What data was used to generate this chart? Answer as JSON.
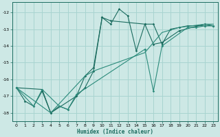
{
  "xlabel": "Humidex (Indice chaleur)",
  "ylabel": "",
  "xlim": [
    -0.5,
    23.5
  ],
  "ylim": [
    -18.5,
    -11.4
  ],
  "bg_color": "#cde8e5",
  "grid_color": "#a8d4d0",
  "line_color": "#1a6b5e",
  "line_color2": "#2a8a7a",
  "xticks": [
    0,
    1,
    2,
    3,
    4,
    5,
    6,
    7,
    8,
    9,
    10,
    11,
    12,
    13,
    14,
    15,
    16,
    17,
    18,
    19,
    20,
    21,
    22,
    23
  ],
  "yticks": [
    -18,
    -17,
    -16,
    -15,
    -14,
    -13,
    -12
  ],
  "series1_x": [
    0,
    1,
    2,
    3,
    4,
    5,
    6,
    7,
    8,
    9,
    10,
    11,
    12,
    13,
    14,
    15,
    16,
    17,
    18,
    19,
    20,
    21,
    22,
    23
  ],
  "series1_y": [
    -16.5,
    -17.3,
    -17.6,
    -16.7,
    -18.0,
    -17.6,
    -17.8,
    -17.0,
    -16.5,
    -15.5,
    -12.3,
    -12.7,
    -11.8,
    -12.2,
    -14.3,
    -12.7,
    -12.7,
    -13.9,
    -13.0,
    -12.9,
    -12.8,
    -12.8,
    -12.8,
    -12.8
  ],
  "series2_x": [
    0,
    3,
    4,
    7,
    8,
    9,
    10,
    11,
    15,
    16,
    17,
    19,
    22,
    23
  ],
  "series2_y": [
    -16.5,
    -16.6,
    -18.0,
    -17.0,
    -15.8,
    -15.3,
    -12.3,
    -12.5,
    -12.7,
    -13.9,
    -13.8,
    -13.1,
    -12.7,
    -12.8
  ],
  "series3_x": [
    0,
    2,
    3,
    5,
    6,
    7,
    15,
    16,
    17,
    20,
    21,
    22,
    23
  ],
  "series3_y": [
    -16.5,
    -17.6,
    -16.6,
    -17.6,
    -17.8,
    -16.9,
    -14.2,
    -16.7,
    -14.0,
    -12.9,
    -12.9,
    -12.8,
    -12.8
  ],
  "series4_x": [
    0,
    4,
    8,
    9,
    15,
    17,
    19,
    22,
    23
  ],
  "series4_y": [
    -16.5,
    -18.0,
    -15.8,
    -15.5,
    -14.4,
    -13.2,
    -12.9,
    -12.7,
    -12.7
  ]
}
